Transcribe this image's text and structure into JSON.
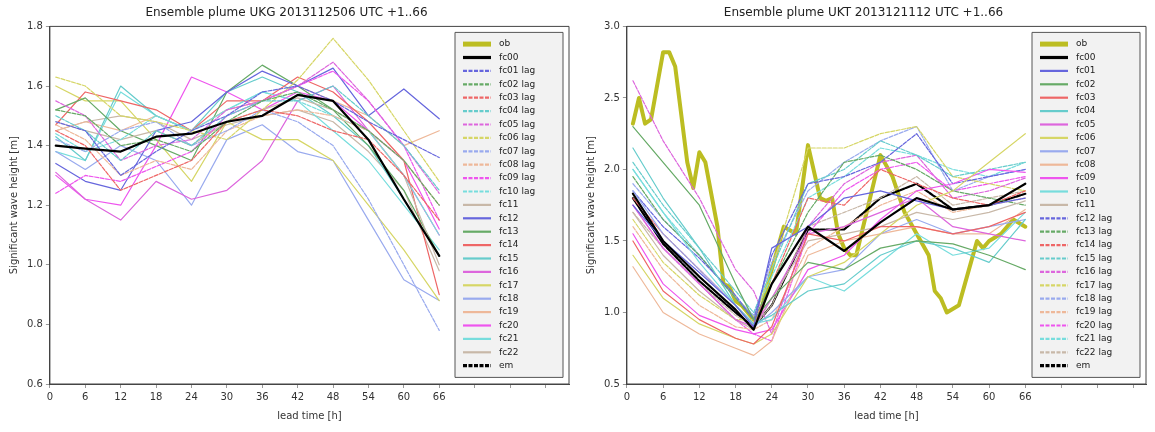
{
  "chart_data": [
    {
      "type": "line",
      "title": "Ensemble plume UKG 2013112506 UTC +1..66",
      "xlabel": "lead time [h]",
      "ylabel": "Significant wave height [m]",
      "xlim": [
        0,
        88
      ],
      "ylim": [
        0.6,
        1.8
      ],
      "xticks": [
        0,
        6,
        12,
        18,
        24,
        30,
        36,
        42,
        48,
        54,
        60,
        66,
        {
          "value": 72,
          "label": null
        },
        {
          "value": 78,
          "label": null
        },
        {
          "value": 84,
          "label": null
        }
      ],
      "yticks": [
        0.6,
        0.8,
        {
          "value": 1,
          "label": "1.0"
        },
        1.2,
        1.4,
        1.6,
        1.8
      ],
      "grid": false,
      "legend": "top right",
      "x": [
        1,
        6,
        12,
        18,
        24,
        30,
        36,
        42,
        48,
        54,
        60,
        66
      ],
      "series": [
        {
          "name": "ob",
          "color": "#bcbd22",
          "values": [
            null,
            null,
            null,
            null,
            null,
            null,
            null,
            null,
            null,
            null,
            null,
            null
          ]
        },
        {
          "name": "fc00",
          "color": "#000000",
          "values": [
            1.4,
            1.39,
            1.38,
            1.43,
            1.44,
            1.48,
            1.5,
            1.57,
            1.55,
            1.42,
            1.22,
            1.03
          ]
        },
        {
          "name": "fc01 lag",
          "color": "#6666dd",
          "line_style": "dashed",
          "values": [
            1.48,
            1.45,
            1.3,
            1.38,
            1.45,
            1.5,
            1.58,
            1.6,
            1.55,
            1.48,
            1.42,
            1.36
          ]
        },
        {
          "name": "fc02 lag",
          "color": "#66aa66",
          "line_style": "dashed",
          "values": [
            1.52,
            1.5,
            1.4,
            1.42,
            1.38,
            1.48,
            1.55,
            1.58,
            1.52,
            1.45,
            1.35,
            1.2
          ]
        },
        {
          "name": "fc03 lag",
          "color": "#ee6666",
          "line_style": "dashed",
          "values": [
            1.45,
            1.4,
            1.25,
            1.3,
            1.35,
            1.48,
            1.52,
            1.5,
            1.45,
            1.42,
            1.3,
            1.15
          ]
        },
        {
          "name": "fc04 lag",
          "color": "#66cccc",
          "line_style": "dashed",
          "values": [
            1.5,
            1.45,
            1.35,
            1.45,
            1.4,
            1.5,
            1.55,
            1.55,
            1.6,
            1.5,
            1.4,
            1.25
          ]
        },
        {
          "name": "fc05 lag",
          "color": "#dd66dd",
          "line_style": "dashed",
          "values": [
            1.55,
            1.5,
            1.35,
            1.4,
            1.42,
            1.52,
            1.55,
            1.6,
            1.68,
            1.55,
            1.4,
            1.24
          ]
        },
        {
          "name": "fc06 lag",
          "color": "#d6d666",
          "line_style": "dashed",
          "values": [
            1.63,
            1.6,
            1.5,
            1.48,
            1.45,
            1.42,
            1.52,
            1.62,
            1.76,
            1.62,
            1.45,
            1.28
          ]
        },
        {
          "name": "fc07 lag",
          "color": "#99aaee",
          "line_style": "dashed",
          "values": [
            1.42,
            1.38,
            1.45,
            1.48,
            1.4,
            1.45,
            1.52,
            1.48,
            1.4,
            1.22,
            1.0,
            0.78
          ]
        },
        {
          "name": "fc08 lag",
          "color": "#eeb899",
          "line_style": "dashed",
          "values": [
            1.47,
            1.42,
            1.3,
            1.35,
            1.32,
            1.45,
            1.5,
            1.52,
            1.5,
            1.45,
            1.35,
            1.2
          ]
        },
        {
          "name": "fc09 lag",
          "color": "#ee55ee",
          "line_style": "dashed",
          "values": [
            1.24,
            1.3,
            1.28,
            1.33,
            1.38,
            1.5,
            1.55,
            1.6,
            1.65,
            1.55,
            1.4,
            1.15
          ]
        },
        {
          "name": "fc10 lag",
          "color": "#77dddd",
          "line_style": "dashed",
          "values": [
            1.44,
            1.38,
            1.42,
            1.5,
            1.45,
            1.52,
            1.58,
            1.55,
            1.5,
            1.45,
            1.3,
            1.1
          ]
        },
        {
          "name": "fc11",
          "color": "#c8b8a8",
          "values": [
            1.48,
            1.45,
            1.42,
            1.45,
            1.4,
            1.48,
            1.52,
            1.56,
            1.52,
            1.45,
            1.3,
            1.0
          ]
        },
        {
          "name": "fc12",
          "color": "#6666dd",
          "values": [
            1.34,
            1.28,
            1.25,
            1.45,
            1.48,
            1.58,
            1.65,
            1.6,
            1.66,
            1.5,
            1.59,
            1.49
          ]
        },
        {
          "name": "fc13",
          "color": "#66aa66",
          "values": [
            1.52,
            1.56,
            1.45,
            1.4,
            1.35,
            1.58,
            1.67,
            1.6,
            1.52,
            1.4,
            1.25,
            1.03
          ]
        },
        {
          "name": "fc14",
          "color": "#ee6666",
          "values": [
            1.47,
            1.58,
            1.55,
            1.52,
            1.45,
            1.55,
            1.55,
            1.63,
            1.58,
            1.48,
            1.35,
            0.9
          ]
        },
        {
          "name": "fc15",
          "color": "#66cccc",
          "values": [
            1.43,
            1.35,
            1.6,
            1.5,
            1.45,
            1.58,
            1.63,
            1.58,
            1.5,
            1.4,
            1.22,
            1.03
          ]
        },
        {
          "name": "fc16",
          "color": "#dd66dd",
          "values": [
            1.31,
            1.22,
            1.15,
            1.28,
            1.22,
            1.25,
            1.35,
            1.55,
            1.6,
            1.45,
            1.3,
            1.1
          ]
        },
        {
          "name": "fc17",
          "color": "#d6d666",
          "values": [
            1.6,
            1.55,
            1.55,
            1.42,
            1.28,
            1.48,
            1.42,
            1.42,
            1.35,
            1.2,
            1.05,
            0.88
          ]
        },
        {
          "name": "fc18",
          "color": "#99aaee",
          "values": [
            1.38,
            1.32,
            1.4,
            1.35,
            1.2,
            1.42,
            1.47,
            1.38,
            1.35,
            1.15,
            0.95,
            0.88
          ]
        },
        {
          "name": "fc19",
          "color": "#eeb899",
          "values": [
            1.45,
            1.48,
            1.45,
            1.5,
            1.45,
            1.52,
            1.55,
            1.6,
            1.55,
            1.5,
            1.4,
            1.45
          ]
        },
        {
          "name": "fc20",
          "color": "#ee55ee",
          "values": [
            1.3,
            1.22,
            1.2,
            1.4,
            1.63,
            1.58,
            1.52,
            1.58,
            1.55,
            1.45,
            1.35,
            1.12
          ]
        },
        {
          "name": "fc21",
          "color": "#77dddd",
          "values": [
            1.38,
            1.35,
            1.58,
            1.5,
            1.45,
            1.52,
            1.58,
            1.55,
            1.45,
            1.35,
            1.2,
            1.05
          ]
        },
        {
          "name": "fc22",
          "color": "#c8b8a8",
          "values": [
            1.45,
            1.48,
            1.5,
            1.48,
            1.42,
            1.47,
            1.5,
            1.52,
            1.48,
            1.38,
            1.25,
            0.98
          ]
        },
        {
          "name": "em",
          "color": "#000000",
          "line_style": "dashed",
          "values": [
            null,
            null,
            null,
            null,
            null,
            null,
            null,
            null,
            null,
            null,
            null,
            null
          ]
        }
      ]
    },
    {
      "type": "line",
      "title": "Ensemble plume UKT 2013121112 UTC +1..66",
      "xlabel": "lead time [h]",
      "ylabel": "Significant wave height [m]",
      "xlim": [
        0,
        86
      ],
      "ylim": [
        0.5,
        3
      ],
      "xticks": [
        0,
        6,
        12,
        18,
        24,
        30,
        36,
        42,
        48,
        54,
        60,
        66,
        {
          "value": 72,
          "label": null
        },
        {
          "value": 78,
          "label": null
        },
        {
          "value": 84,
          "label": null
        }
      ],
      "yticks": [
        0.5,
        {
          "value": 1,
          "label": "1.0"
        },
        1.5,
        {
          "value": 2,
          "label": "2.0"
        },
        2.5,
        {
          "value": 3,
          "label": "3.0"
        }
      ],
      "grid": false,
      "legend": "top right",
      "x": [
        1,
        6,
        12,
        18,
        21,
        24,
        30,
        36,
        42,
        48,
        54,
        60,
        66
      ],
      "series": [
        {
          "name": "ob",
          "color": "#bcbd22",
          "x": [
            1,
            2,
            3,
            4,
            6,
            7,
            8,
            10,
            11,
            12,
            13,
            15,
            16,
            17,
            18,
            19,
            20,
            21,
            22,
            24,
            26,
            28,
            30,
            32,
            33,
            34,
            35,
            36,
            37,
            38,
            40,
            42,
            44,
            46,
            48,
            50,
            51,
            52,
            53,
            55,
            57,
            58,
            59,
            60,
            62,
            64,
            66
          ],
          "values": [
            2.32,
            2.5,
            2.32,
            2.35,
            2.82,
            2.82,
            2.72,
            2.05,
            1.87,
            2.12,
            2.05,
            1.6,
            1.2,
            1.18,
            1.08,
            1.05,
            1.0,
            0.95,
            0.98,
            1.3,
            1.6,
            1.55,
            2.17,
            1.8,
            1.78,
            1.8,
            1.55,
            1.45,
            1.4,
            1.4,
            1.75,
            2.1,
            1.95,
            1.7,
            1.55,
            1.4,
            1.15,
            1.1,
            1.0,
            1.05,
            1.35,
            1.5,
            1.45,
            1.5,
            1.55,
            1.65,
            1.6
          ]
        },
        {
          "name": "fc00",
          "color": "#000000",
          "values": [
            1.83,
            1.5,
            1.25,
            1.02,
            0.88,
            1.2,
            1.6,
            1.43,
            1.63,
            1.8,
            1.72,
            1.75,
            1.9
          ]
        },
        {
          "name": "fc01",
          "color": "#6666dd",
          "values": [
            1.75,
            1.5,
            1.28,
            1.05,
            0.9,
            1.45,
            1.6,
            1.8,
            1.85,
            1.78,
            1.72,
            1.75,
            1.8
          ]
        },
        {
          "name": "fc02",
          "color": "#66aa66",
          "values": [
            2.3,
            2.05,
            1.75,
            1.2,
            0.95,
            1.1,
            1.35,
            1.3,
            1.45,
            1.5,
            1.48,
            1.4,
            1.3
          ]
        },
        {
          "name": "fc03",
          "color": "#ee6666",
          "values": [
            1.5,
            1.15,
            0.95,
            0.82,
            0.78,
            0.9,
            1.55,
            1.5,
            1.6,
            1.6,
            1.55,
            1.6,
            1.7
          ]
        },
        {
          "name": "fc04",
          "color": "#66cccc",
          "values": [
            2.15,
            1.8,
            1.45,
            1.05,
            0.92,
            0.98,
            1.15,
            1.2,
            1.4,
            1.5,
            1.45,
            1.35,
            1.65
          ]
        },
        {
          "name": "fc05",
          "color": "#dd66dd",
          "values": [
            1.75,
            1.45,
            1.2,
            0.95,
            0.9,
            1.1,
            1.55,
            1.6,
            1.7,
            1.8,
            1.6,
            1.55,
            1.5
          ]
        },
        {
          "name": "fc06",
          "color": "#d6d666",
          "values": [
            1.4,
            1.1,
            0.92,
            0.82,
            0.78,
            0.85,
            1.25,
            1.35,
            1.55,
            1.75,
            1.85,
            2.05,
            2.25
          ]
        },
        {
          "name": "fc07",
          "color": "#99aaee",
          "values": [
            1.85,
            1.55,
            1.3,
            1.05,
            0.9,
            1.0,
            1.25,
            1.3,
            1.55,
            1.65,
            1.55,
            1.6,
            1.65
          ]
        },
        {
          "name": "fc08",
          "color": "#eeb899",
          "values": [
            1.32,
            1.0,
            0.85,
            0.75,
            0.7,
            0.8,
            1.4,
            1.5,
            1.55,
            1.6,
            1.55,
            1.55,
            1.72
          ]
        },
        {
          "name": "fc09",
          "color": "#ee55ee",
          "values": [
            1.55,
            1.2,
            0.98,
            0.88,
            0.85,
            0.88,
            1.3,
            1.4,
            1.65,
            1.85,
            1.9,
            2.0,
            1.98
          ]
        },
        {
          "name": "fc10",
          "color": "#77dddd",
          "values": [
            2.0,
            1.7,
            1.35,
            1.05,
            0.92,
            0.95,
            1.25,
            1.15,
            1.35,
            1.55,
            1.4,
            1.45,
            1.7
          ]
        },
        {
          "name": "fc11",
          "color": "#c8b8a8",
          "values": [
            1.7,
            1.4,
            1.15,
            0.95,
            0.88,
            1.1,
            1.5,
            1.55,
            1.6,
            1.7,
            1.65,
            1.7,
            1.78
          ]
        },
        {
          "name": "fc12 lag",
          "color": "#6666dd",
          "line_style": "dashed",
          "values": [
            1.85,
            1.6,
            1.38,
            1.12,
            0.95,
            1.4,
            1.9,
            1.95,
            2.05,
            2.25,
            1.9,
            1.95,
            2.0
          ]
        },
        {
          "name": "fc13 lag",
          "color": "#66aa66",
          "line_style": "dashed",
          "values": [
            1.95,
            1.65,
            1.4,
            1.1,
            0.95,
            1.2,
            1.7,
            2.05,
            2.1,
            2.0,
            1.85,
            1.8,
            1.75
          ]
        },
        {
          "name": "fc14 lag",
          "color": "#ee6666",
          "line_style": "dashed",
          "values": [
            1.8,
            1.55,
            1.3,
            1.05,
            0.92,
            1.2,
            1.8,
            1.75,
            2.0,
            1.9,
            1.8,
            1.75,
            1.85
          ]
        },
        {
          "name": "fc15 lag",
          "color": "#66cccc",
          "line_style": "dashed",
          "values": [
            2.05,
            1.75,
            1.45,
            1.15,
            1.0,
            1.3,
            1.9,
            2.0,
            2.2,
            2.1,
            1.95,
            2.0,
            2.05
          ]
        },
        {
          "name": "fc16 lag",
          "color": "#dd66dd",
          "line_style": "dashed",
          "values": [
            2.62,
            2.2,
            1.8,
            1.3,
            1.15,
            0.85,
            1.6,
            1.9,
            2.05,
            2.1,
            1.8,
            1.85,
            1.94
          ]
        },
        {
          "name": "fc17 lag",
          "color": "#d6d666",
          "line_style": "dashed",
          "values": [
            1.65,
            1.35,
            1.12,
            0.95,
            0.95,
            1.3,
            2.15,
            2.15,
            2.25,
            2.3,
            1.95,
            1.9,
            1.85
          ]
        },
        {
          "name": "fc18 lag",
          "color": "#99aaee",
          "line_style": "dashed",
          "values": [
            1.9,
            1.65,
            1.4,
            1.1,
            0.98,
            1.35,
            1.85,
            2.05,
            2.2,
            2.3,
            1.85,
            1.95,
            2.0
          ]
        },
        {
          "name": "fc19 lag",
          "color": "#eeb899",
          "line_style": "dashed",
          "values": [
            1.6,
            1.3,
            1.05,
            0.9,
            0.88,
            0.95,
            1.45,
            1.6,
            1.75,
            1.85,
            1.7,
            1.75,
            1.8
          ]
        },
        {
          "name": "fc20 lag",
          "color": "#ee55ee",
          "line_style": "dashed",
          "values": [
            1.75,
            1.45,
            1.2,
            0.95,
            0.85,
            0.8,
            1.55,
            1.85,
            2.0,
            2.05,
            1.85,
            1.9,
            1.95
          ]
        },
        {
          "name": "fc21 lag",
          "color": "#77dddd",
          "line_style": "dashed",
          "values": [
            2.0,
            1.7,
            1.4,
            1.1,
            0.98,
            1.25,
            1.8,
            1.95,
            2.15,
            2.1,
            2.0,
            1.95,
            2.05
          ]
        },
        {
          "name": "fc22 lag",
          "color": "#c8b8a8",
          "line_style": "dashed",
          "values": [
            1.7,
            1.45,
            1.2,
            0.98,
            0.9,
            1.05,
            1.6,
            1.7,
            1.8,
            1.95,
            1.75,
            1.8,
            1.85
          ]
        },
        {
          "name": "em",
          "color": "#000000",
          "line_style": "dashed",
          "values": [
            1.8,
            1.48,
            1.22,
            1.0,
            0.9,
            1.05,
            1.58,
            1.58,
            1.8,
            1.9,
            1.72,
            1.75,
            1.83
          ]
        }
      ]
    }
  ]
}
